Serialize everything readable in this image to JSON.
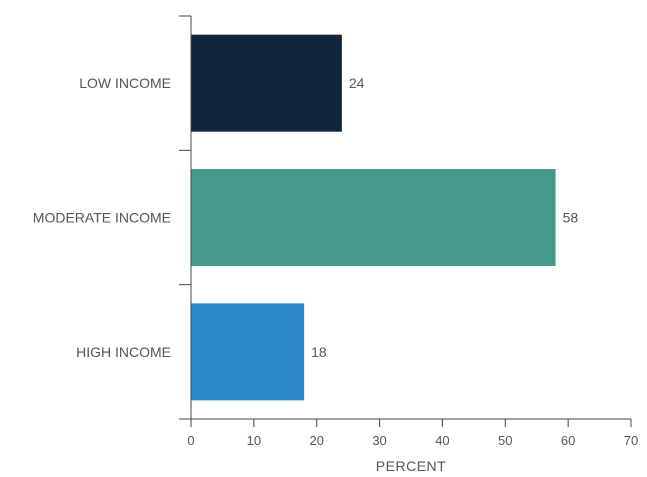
{
  "chart_data": {
    "type": "bar",
    "orientation": "horizontal",
    "categories": [
      "LOW INCOME",
      "MODERATE INCOME",
      "HIGH INCOME"
    ],
    "values": [
      24,
      58,
      18
    ],
    "data_labels": [
      "24",
      "58",
      "18"
    ],
    "colors": [
      "#10263a",
      "#469a8b",
      "#2a8ac8"
    ],
    "xlabel": "PERCENT",
    "ylabel": "",
    "xlim": [
      0,
      70
    ],
    "xticks": [
      0,
      10,
      20,
      30,
      40,
      50,
      60,
      70
    ],
    "xtick_labels": [
      "0",
      "10",
      "20",
      "30",
      "40",
      "50",
      "60",
      "70"
    ],
    "grid": false,
    "legend": "none"
  }
}
